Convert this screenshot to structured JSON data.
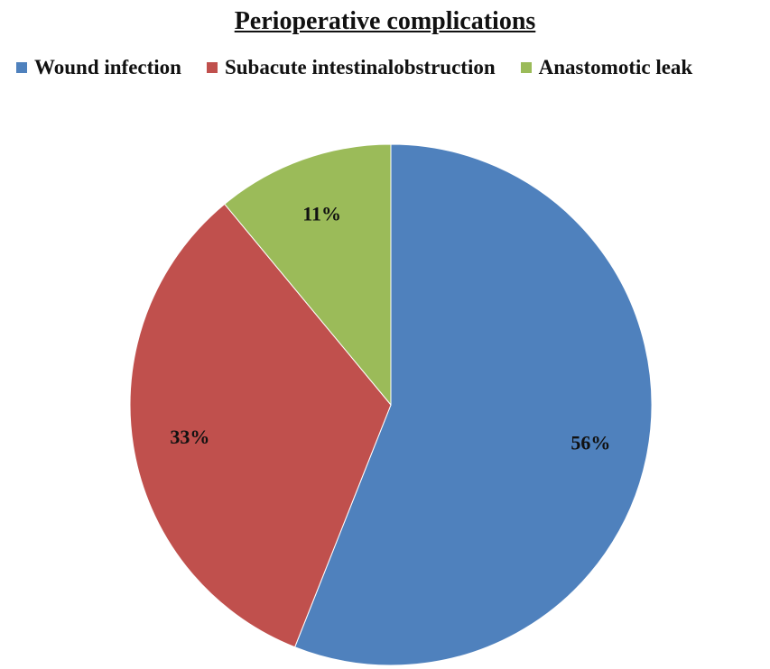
{
  "chart_data": {
    "type": "pie",
    "title": "Perioperative complications",
    "slices": [
      {
        "label": "Wound infection",
        "value": 56,
        "display": "56%",
        "color": "#4f81bd"
      },
      {
        "label": "Subacute intestinalobstruction",
        "value": 33,
        "display": "33%",
        "color": "#c0504d"
      },
      {
        "label": "Anastomotic leak",
        "value": 11,
        "display": "11%",
        "color": "#9bbb59"
      }
    ],
    "start_angle_deg": 0,
    "direction": "clockwise",
    "legend_position": "top"
  }
}
